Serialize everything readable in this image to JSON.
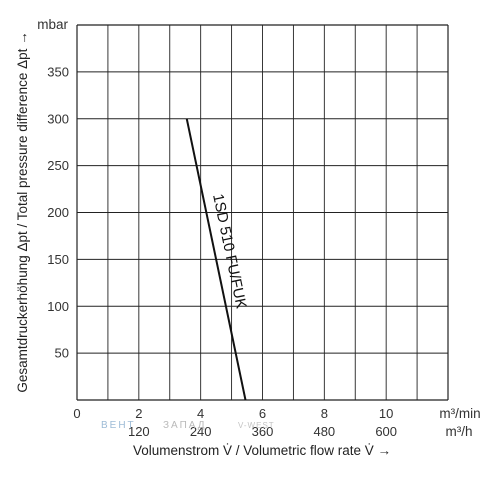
{
  "chart_data": {
    "type": "line",
    "x_primary": {
      "unit": "m³/min",
      "range": [
        0,
        12
      ],
      "ticks": [
        "0",
        "2",
        "4",
        "6",
        "8",
        "10"
      ]
    },
    "x_secondary": {
      "unit": "m³/h",
      "ticks": [
        "120",
        "240",
        "360",
        "480",
        "600"
      ]
    },
    "y": {
      "unit": "mbar",
      "range": [
        0,
        400
      ],
      "ticks": [
        "50",
        "100",
        "150",
        "200",
        "250",
        "300",
        "350"
      ]
    },
    "xlabel": "Volumenstrom V̇ / Volumetric flow rate V̇ →",
    "ylabel": "Gesamtdruckerhöhung Δpt / Total pressure difference Δpt →",
    "grid": true,
    "series": [
      {
        "name": "1SD 510 FU/FUK",
        "points": [
          [
            3.55,
            300
          ],
          [
            5.45,
            0
          ]
        ]
      }
    ]
  },
  "watermark": {
    "part1": "ВЕНТ",
    "part2": "ЗАПАД",
    "part3": "V-WEST"
  }
}
